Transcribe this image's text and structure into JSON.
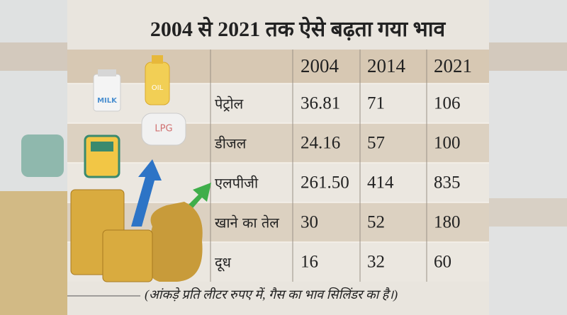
{
  "header": {
    "title": "2004 से 2021 तक ऐसे बढ़ता गया भाव"
  },
  "illustration": {
    "milk": "MILK",
    "oil": "OIL",
    "lpg": "LPG"
  },
  "table": {
    "columns": [
      "2004",
      "2014",
      "2021"
    ],
    "rows": [
      [
        "पेट्रोल",
        "36.81",
        "71",
        "106"
      ],
      [
        "डीजल",
        "24.16",
        "57",
        "100"
      ],
      [
        "एलपीजी",
        "261.50",
        "414",
        "835"
      ],
      [
        "खाने का तेल",
        "30",
        "52",
        "180"
      ],
      [
        "दूध",
        "16",
        "32",
        "60"
      ]
    ]
  },
  "footnote": "(आंकड़े प्रति लीटर रुपए में, गैस का भाव सिलिंडर का है।)"
}
